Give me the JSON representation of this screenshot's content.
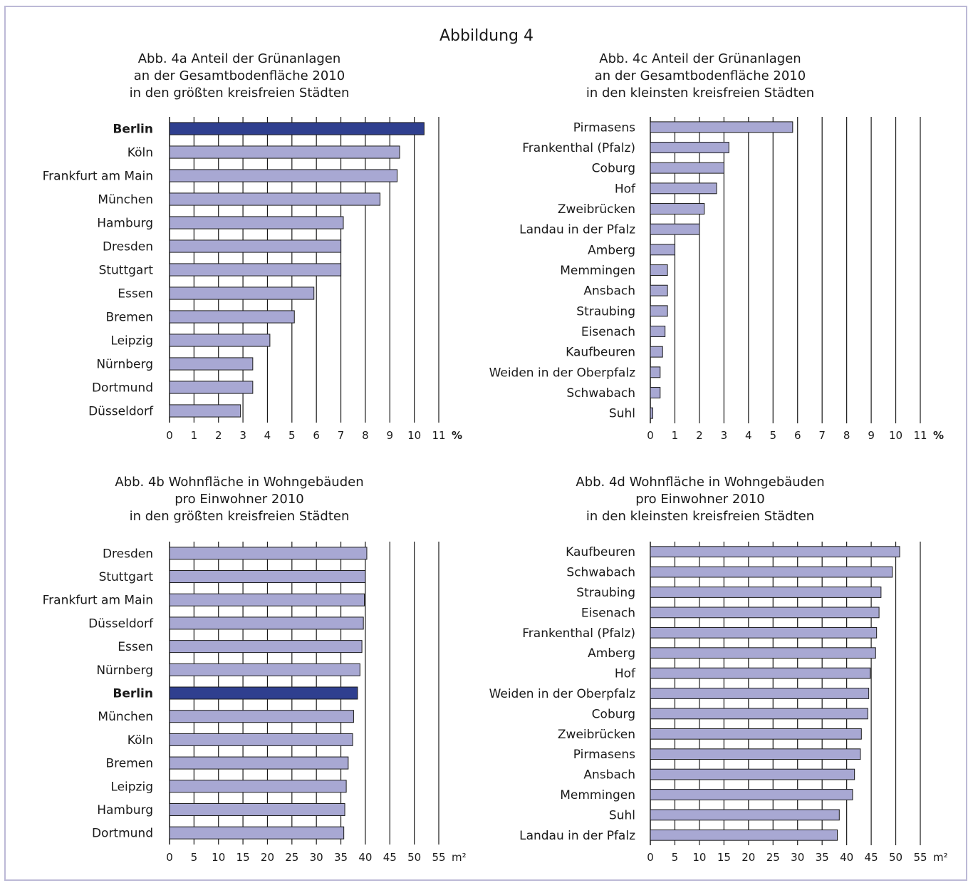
{
  "main_title": "Abbildung 4",
  "colors": {
    "bar": "#a8a8d3",
    "highlight": "#2f3f8f",
    "bar_stroke": "#1a1a1a",
    "grid": "#1a1a1a"
  },
  "chart_data": [
    {
      "id": "4a",
      "type": "bar",
      "orientation": "horizontal",
      "title": [
        "Abb. 4a Anteil der Grünanlagen",
        "an der Gesamtbodenfläche 2010",
        "in den größten kreisfreien Städten"
      ],
      "categories": [
        "Berlin",
        "Köln",
        "Frankfurt am Main",
        "München",
        "Hamburg",
        "Dresden",
        "Stuttgart",
        "Essen",
        "Bremen",
        "Leipzig",
        "Nürnberg",
        "Dortmund",
        "Düsseldorf"
      ],
      "values": [
        10.4,
        9.4,
        9.3,
        8.6,
        7.1,
        7.0,
        7.0,
        5.9,
        5.1,
        4.1,
        3.4,
        3.4,
        2.9
      ],
      "highlight": "Berlin",
      "xlim": [
        0,
        11
      ],
      "ticks": [
        "0",
        "1",
        "2",
        "3",
        "4",
        "5",
        "6",
        "7",
        "8",
        "9",
        "10",
        "11"
      ],
      "unit": "%",
      "grid": true
    },
    {
      "id": "4c",
      "type": "bar",
      "orientation": "horizontal",
      "title": [
        "Abb. 4c Anteil der Grünanlagen",
        "an der Gesamtbodenfläche 2010",
        "in den kleinsten kreisfreien Städten"
      ],
      "categories": [
        "Pirmasens",
        "Frankenthal (Pfalz)",
        "Coburg",
        "Hof",
        "Zweibrücken",
        "Landau in der Pfalz",
        "Amberg",
        "Memmingen",
        "Ansbach",
        "Straubing",
        "Eisenach",
        "Kaufbeuren",
        "Weiden in der Oberpfalz",
        "Schwabach",
        "Suhl"
      ],
      "values": [
        5.8,
        3.2,
        3.0,
        2.7,
        2.2,
        2.0,
        1.0,
        0.7,
        0.7,
        0.7,
        0.6,
        0.5,
        0.4,
        0.4,
        0.1
      ],
      "highlight": "",
      "xlim": [
        0,
        11
      ],
      "ticks": [
        "0",
        "1",
        "2",
        "3",
        "4",
        "5",
        "6",
        "7",
        "8",
        "9",
        "10",
        "11"
      ],
      "unit": "%",
      "grid": true
    },
    {
      "id": "4b",
      "type": "bar",
      "orientation": "horizontal",
      "title": [
        "Abb. 4b Wohnfläche in Wohngebäuden",
        "pro Einwohner 2010",
        "in den größten kreisfreien Städten"
      ],
      "categories": [
        "Dresden",
        "Stuttgart",
        "Frankfurt am Main",
        "Düsseldorf",
        "Essen",
        "Nürnberg",
        "Berlin",
        "München",
        "Köln",
        "Bremen",
        "Leipzig",
        "Hamburg",
        "Dortmund"
      ],
      "values": [
        40.3,
        40.0,
        39.8,
        39.6,
        39.3,
        38.9,
        38.4,
        37.6,
        37.4,
        36.5,
        36.1,
        35.8,
        35.6
      ],
      "highlight": "Berlin",
      "xlim": [
        0,
        55
      ],
      "ticks": [
        "0",
        "5",
        "10",
        "15",
        "20",
        "25",
        "30",
        "35",
        "40",
        "45",
        "50",
        "55"
      ],
      "unit": "m²",
      "grid": true
    },
    {
      "id": "4d",
      "type": "bar",
      "orientation": "horizontal",
      "title": [
        "Abb. 4d Wohnfläche in Wohngebäuden",
        "pro Einwohner 2010",
        "in den kleinsten kreisfreien Städten"
      ],
      "categories": [
        "Kaufbeuren",
        "Schwabach",
        "Straubing",
        "Eisenach",
        "Frankenthal (Pfalz)",
        "Amberg",
        "Hof",
        "Weiden in der Oberpfalz",
        "Coburg",
        "Zweibrücken",
        "Pirmasens",
        "Ansbach",
        "Memmingen",
        "Suhl",
        "Landau in der Pfalz"
      ],
      "values": [
        50.8,
        49.3,
        47.0,
        46.6,
        46.1,
        45.9,
        44.8,
        44.5,
        44.3,
        43.0,
        42.8,
        41.6,
        41.2,
        38.5,
        38.1
      ],
      "highlight": "",
      "xlim": [
        0,
        55
      ],
      "ticks": [
        "0",
        "5",
        "10",
        "15",
        "20",
        "25",
        "30",
        "35",
        "40",
        "45",
        "50",
        "55"
      ],
      "unit": "m²",
      "grid": true
    }
  ]
}
